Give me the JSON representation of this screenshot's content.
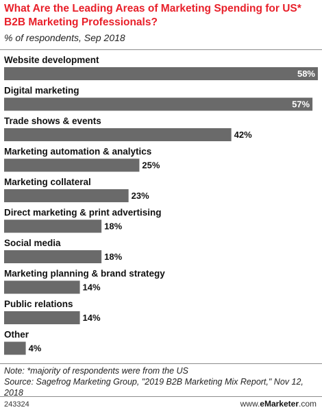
{
  "chart_data": {
    "type": "bar",
    "orientation": "horizontal",
    "title": "What Are the Leading Areas of Marketing Spending for US* B2B Marketing Professionals?",
    "subtitle": "% of respondents, Sep 2018",
    "categories": [
      "Website development",
      "Digital marketing",
      "Trade shows & events",
      "Marketing automation & analytics",
      "Marketing collateral",
      "Direct marketing & print advertising",
      "Social media",
      "Marketing planning & brand strategy",
      "Public relations",
      "Other"
    ],
    "values": [
      58,
      57,
      42,
      25,
      23,
      18,
      18,
      14,
      14,
      4
    ],
    "value_labels": [
      "58%",
      "57%",
      "42%",
      "25%",
      "23%",
      "18%",
      "18%",
      "14%",
      "14%",
      "4%"
    ],
    "xlim": [
      0,
      58
    ],
    "grid": false,
    "bar_color": "#6a6a6a"
  },
  "footer": {
    "note": "Note: *majority of respondents were from the US",
    "source": "Source: Sagefrog Marketing Group, \"2019 B2B Marketing Mix Report,\" Nov 12, 2018"
  },
  "chart_id": "243324",
  "brand": {
    "prefix": "www.",
    "name": "eMarketer",
    "suffix": ".com"
  }
}
